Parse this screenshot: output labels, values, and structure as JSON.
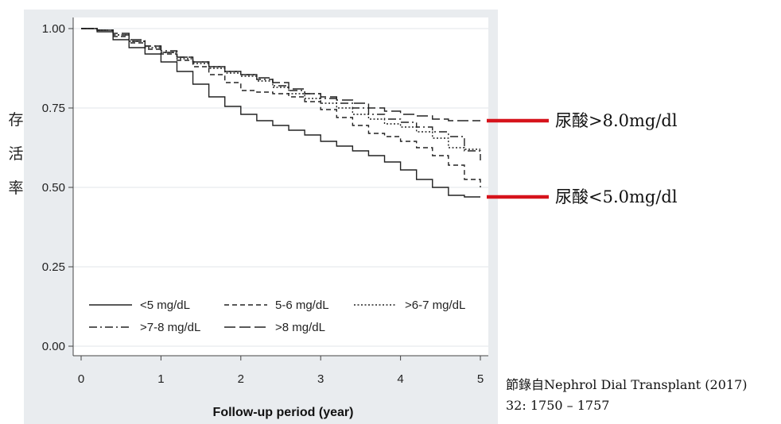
{
  "chart_data": {
    "type": "line",
    "title": "",
    "xlabel": "Follow-up period (year)",
    "ylabel": "存活率",
    "xlim": [
      0,
      5
    ],
    "ylim": [
      0,
      1
    ],
    "x_ticks": [
      "0",
      "1",
      "2",
      "3",
      "4",
      "5"
    ],
    "y_ticks": [
      "0.00",
      "0.25",
      "0.50",
      "0.75",
      "1.00"
    ],
    "grid": true,
    "legend_position": "bottom-inside",
    "series": [
      {
        "name": "<5 mg/dL",
        "dash": "solid",
        "x": [
          0,
          0.2,
          0.4,
          0.6,
          0.8,
          1.0,
          1.2,
          1.4,
          1.6,
          1.8,
          2.0,
          2.2,
          2.4,
          2.6,
          2.8,
          3.0,
          3.2,
          3.4,
          3.6,
          3.8,
          4.0,
          4.2,
          4.4,
          4.6,
          4.8,
          5.0
        ],
        "y": [
          1.0,
          0.99,
          0.965,
          0.94,
          0.92,
          0.895,
          0.865,
          0.825,
          0.785,
          0.755,
          0.73,
          0.71,
          0.695,
          0.68,
          0.665,
          0.645,
          0.63,
          0.615,
          0.6,
          0.58,
          0.555,
          0.525,
          0.5,
          0.475,
          0.47,
          0.47
        ]
      },
      {
        "name": "5-6 mg/dL",
        "dash": "short-dash",
        "x": [
          0,
          0.2,
          0.4,
          0.6,
          0.8,
          1.0,
          1.2,
          1.4,
          1.6,
          1.8,
          2.0,
          2.2,
          2.4,
          2.6,
          2.8,
          3.0,
          3.2,
          3.4,
          3.6,
          3.8,
          4.0,
          4.2,
          4.4,
          4.6,
          4.8,
          5.0
        ],
        "y": [
          1.0,
          0.995,
          0.975,
          0.955,
          0.935,
          0.92,
          0.9,
          0.88,
          0.855,
          0.83,
          0.805,
          0.8,
          0.795,
          0.785,
          0.77,
          0.745,
          0.72,
          0.695,
          0.67,
          0.66,
          0.645,
          0.625,
          0.6,
          0.57,
          0.525,
          0.5
        ]
      },
      {
        "name": ">6-7 mg/dL",
        "dash": "dot",
        "x": [
          0,
          0.2,
          0.4,
          0.6,
          0.8,
          1.0,
          1.2,
          1.4,
          1.6,
          1.8,
          2.0,
          2.2,
          2.4,
          2.6,
          2.8,
          3.0,
          3.2,
          3.4,
          3.6,
          3.8,
          4.0,
          4.2,
          4.4,
          4.6,
          4.8,
          5.0
        ],
        "y": [
          1.0,
          0.995,
          0.98,
          0.96,
          0.94,
          0.925,
          0.905,
          0.89,
          0.875,
          0.86,
          0.85,
          0.835,
          0.815,
          0.795,
          0.78,
          0.765,
          0.75,
          0.73,
          0.715,
          0.7,
          0.69,
          0.675,
          0.655,
          0.625,
          0.62,
          0.62
        ]
      },
      {
        "name": ">7-8 mg/dL",
        "dash": "dash-dot",
        "x": [
          0,
          0.2,
          0.4,
          0.6,
          0.8,
          1.0,
          1.2,
          1.4,
          1.6,
          1.8,
          2.0,
          2.2,
          2.4,
          2.6,
          2.8,
          3.0,
          3.2,
          3.4,
          3.6,
          3.8,
          4.0,
          4.2,
          4.4,
          4.6,
          4.8,
          5.0
        ],
        "y": [
          1.0,
          0.995,
          0.98,
          0.96,
          0.945,
          0.93,
          0.91,
          0.895,
          0.88,
          0.865,
          0.855,
          0.84,
          0.82,
          0.805,
          0.795,
          0.78,
          0.765,
          0.75,
          0.73,
          0.715,
          0.705,
          0.69,
          0.675,
          0.66,
          0.615,
          0.585
        ]
      },
      {
        "name": ">8 mg/dL",
        "dash": "long-dash",
        "x": [
          0,
          0.2,
          0.4,
          0.6,
          0.8,
          1.0,
          1.2,
          1.4,
          1.6,
          1.8,
          2.0,
          2.2,
          2.4,
          2.6,
          2.8,
          3.0,
          3.2,
          3.4,
          3.6,
          3.8,
          4.0,
          4.2,
          4.4,
          4.6,
          4.8,
          5.0
        ],
        "y": [
          1.0,
          0.995,
          0.985,
          0.965,
          0.945,
          0.925,
          0.91,
          0.895,
          0.88,
          0.865,
          0.855,
          0.845,
          0.83,
          0.81,
          0.795,
          0.785,
          0.775,
          0.765,
          0.75,
          0.74,
          0.73,
          0.725,
          0.715,
          0.71,
          0.71,
          0.71
        ]
      }
    ],
    "annotations": [
      {
        "text": "尿酸>8.0mg/dl",
        "points_to_series": ">8 mg/dL",
        "value": 0.71,
        "color": "#d6131b"
      },
      {
        "text": "尿酸<5.0mg/dl",
        "points_to_series": "<5 mg/dL",
        "value": 0.47,
        "color": "#d6131b"
      }
    ],
    "source_line1": "節錄自Nephrol Dial Transplant (2017)",
    "source_line2": "32: 1750 – 1757"
  }
}
